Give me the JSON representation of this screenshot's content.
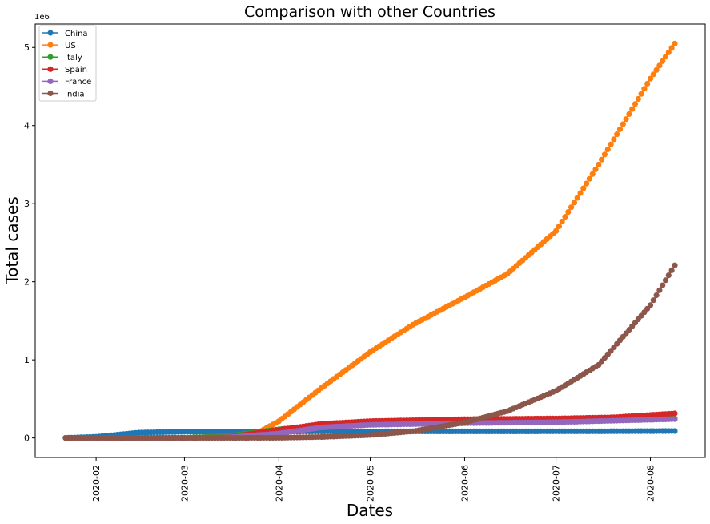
{
  "chart_data": {
    "type": "line",
    "title": "Comparison with other Countries",
    "xlabel": "Dates",
    "ylabel": "Total cases",
    "y_offset_label": "1e6",
    "x_ticks": [
      "2020-02",
      "2020-03",
      "2020-04",
      "2020-05",
      "2020-06",
      "2020-07",
      "2020-08"
    ],
    "y_ticks": [
      "0",
      "1",
      "2",
      "3",
      "4",
      "5"
    ],
    "x_range": [
      "2020-01-22",
      "2020-08-09"
    ],
    "ylim": [
      -250000,
      5300000
    ],
    "grid": false,
    "legend_position": "top-left",
    "marker": "circle",
    "series": [
      {
        "name": "China",
        "color": "#1f77b4",
        "points": [
          [
            "2020-01-22",
            548
          ],
          [
            "2020-02-01",
            14380
          ],
          [
            "2020-02-15",
            68500
          ],
          [
            "2020-03-01",
            79930
          ],
          [
            "2020-03-20",
            81250
          ],
          [
            "2020-04-17",
            83760
          ],
          [
            "2020-06-01",
            84150
          ],
          [
            "2020-07-15",
            85570
          ],
          [
            "2020-08-09",
            88780
          ]
        ]
      },
      {
        "name": "US",
        "color": "#ff7f0e",
        "points": [
          [
            "2020-01-22",
            1
          ],
          [
            "2020-03-01",
            32
          ],
          [
            "2020-03-15",
            3500
          ],
          [
            "2020-03-25",
            65000
          ],
          [
            "2020-04-01",
            215000
          ],
          [
            "2020-04-15",
            640000
          ],
          [
            "2020-05-01",
            1100000
          ],
          [
            "2020-05-15",
            1450000
          ],
          [
            "2020-06-01",
            1800000
          ],
          [
            "2020-06-15",
            2100000
          ],
          [
            "2020-07-01",
            2650000
          ],
          [
            "2020-07-15",
            3500000
          ],
          [
            "2020-08-01",
            4600000
          ],
          [
            "2020-08-09",
            5050000
          ]
        ]
      },
      {
        "name": "Italy",
        "color": "#2ca02c",
        "points": [
          [
            "2020-01-22",
            0
          ],
          [
            "2020-02-20",
            3
          ],
          [
            "2020-03-01",
            1700
          ],
          [
            "2020-03-15",
            24700
          ],
          [
            "2020-04-01",
            110000
          ],
          [
            "2020-04-15",
            165000
          ],
          [
            "2020-05-01",
            207000
          ],
          [
            "2020-06-01",
            233000
          ],
          [
            "2020-07-01",
            240600
          ],
          [
            "2020-08-09",
            250100
          ]
        ]
      },
      {
        "name": "Spain",
        "color": "#d62728",
        "points": [
          [
            "2020-01-22",
            0
          ],
          [
            "2020-03-01",
            84
          ],
          [
            "2020-03-15",
            7800
          ],
          [
            "2020-04-01",
            104000
          ],
          [
            "2020-04-15",
            180000
          ],
          [
            "2020-05-01",
            215000
          ],
          [
            "2020-06-01",
            240000
          ],
          [
            "2020-07-01",
            249000
          ],
          [
            "2020-07-20",
            264000
          ],
          [
            "2020-08-09",
            314000
          ]
        ]
      },
      {
        "name": "France",
        "color": "#9467bd",
        "points": [
          [
            "2020-01-22",
            0
          ],
          [
            "2020-03-01",
            130
          ],
          [
            "2020-03-15",
            5400
          ],
          [
            "2020-04-01",
            57000
          ],
          [
            "2020-04-15",
            135000
          ],
          [
            "2020-05-01",
            168000
          ],
          [
            "2020-06-01",
            189000
          ],
          [
            "2020-07-01",
            202000
          ],
          [
            "2020-08-09",
            241000
          ]
        ]
      },
      {
        "name": "India",
        "color": "#8c564b",
        "points": [
          [
            "2020-01-22",
            0
          ],
          [
            "2020-03-15",
            110
          ],
          [
            "2020-04-01",
            1998
          ],
          [
            "2020-04-15",
            12000
          ],
          [
            "2020-05-01",
            37000
          ],
          [
            "2020-05-15",
            85000
          ],
          [
            "2020-06-01",
            198000
          ],
          [
            "2020-06-15",
            343000
          ],
          [
            "2020-07-01",
            604000
          ],
          [
            "2020-07-15",
            936000
          ],
          [
            "2020-08-01",
            1700000
          ],
          [
            "2020-08-09",
            2210000
          ]
        ]
      }
    ]
  }
}
